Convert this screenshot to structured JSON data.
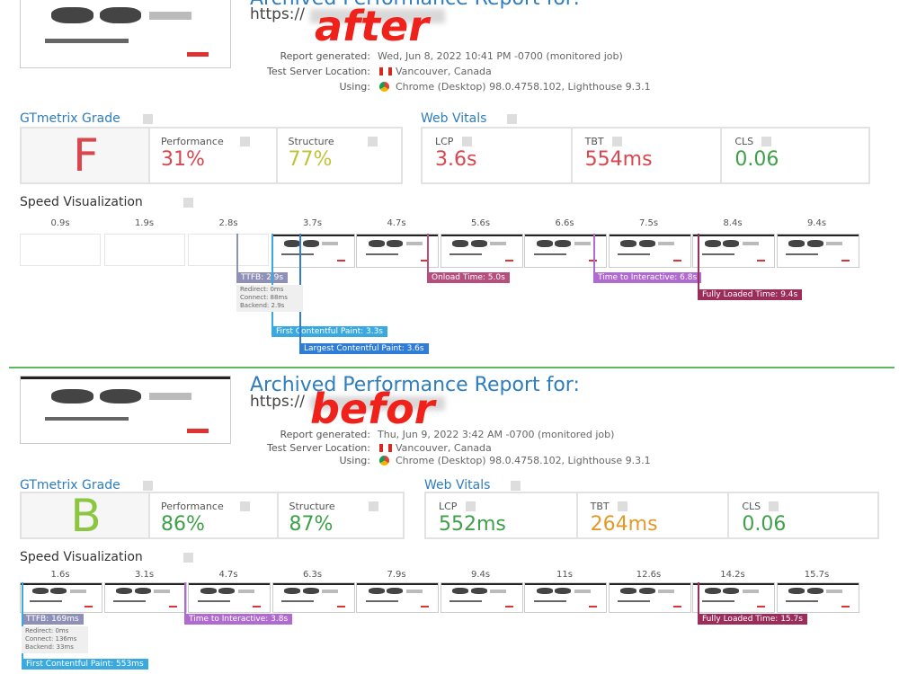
{
  "reports": [
    {
      "stamp": "after",
      "title": "Archived Performance Report for:",
      "url": "https://",
      "meta": [
        {
          "label": "Report generated:",
          "value": "Wed, Jun 8, 2022 10:41 PM -0700 (monitored job)"
        },
        {
          "label": "Test Server Location:",
          "value": "Vancouver, Canada"
        },
        {
          "label": "Using:",
          "value": "Chrome (Desktop) 98.0.4758.102, Lighthouse 9.3.1"
        }
      ],
      "grade_heading": "GTmetrix Grade",
      "grade": {
        "value": "F",
        "color": "#d9464e"
      },
      "metrics": [
        {
          "label": "Performance",
          "value": "31%",
          "color": "#d9464e"
        },
        {
          "label": "Structure",
          "value": "77%",
          "color": "#c2c23a"
        }
      ],
      "vitals_heading": "Web Vitals",
      "vitals": [
        {
          "label": "LCP",
          "value": "3.6s",
          "color": "#d9464e"
        },
        {
          "label": "TBT",
          "value": "554ms",
          "color": "#d9464e"
        },
        {
          "label": "CLS",
          "value": "0.06",
          "color": "#3fa04a"
        }
      ],
      "speed_heading": "Speed Visualization",
      "timeline": [
        "0.9s",
        "1.9s",
        "2.8s",
        "3.7s",
        "4.7s",
        "5.6s",
        "6.6s",
        "7.5s",
        "8.4s",
        "9.4s"
      ],
      "markers": [
        {
          "label": "TTFB: 2.9s",
          "color": "#8f90b8"
        },
        {
          "label": "First Contentful Paint: 3.3s",
          "color": "#3aa9e0"
        },
        {
          "label": "Largest Contentful Paint: 3.6s",
          "color": "#2f7dd6"
        },
        {
          "label": "Onload Time: 5.0s",
          "color": "#b64f7d"
        },
        {
          "label": "Time to Interactive: 6.8s",
          "color": "#b06bd0"
        },
        {
          "label": "Fully Loaded Time: 9.4s",
          "color": "#9b2d5b"
        }
      ],
      "ttfb_details": [
        "Redirect: 0ms",
        "Connect: 88ms",
        "Backend: 2.9s"
      ]
    },
    {
      "stamp": "befor",
      "title": "Archived Performance Report for:",
      "url": "https://",
      "meta": [
        {
          "label": "Report generated:",
          "value": "Thu, Jun 9, 2022 3:42 AM -0700 (monitored job)"
        },
        {
          "label": "Test Server Location:",
          "value": "Vancouver, Canada"
        },
        {
          "label": "Using:",
          "value": "Chrome (Desktop) 98.0.4758.102, Lighthouse 9.3.1"
        }
      ],
      "grade_heading": "GTmetrix Grade",
      "grade": {
        "value": "B",
        "color": "#8cc63e"
      },
      "metrics": [
        {
          "label": "Performance",
          "value": "86%",
          "color": "#3fa04a"
        },
        {
          "label": "Structure",
          "value": "87%",
          "color": "#3fa04a"
        }
      ],
      "vitals_heading": "Web Vitals",
      "vitals": [
        {
          "label": "LCP",
          "value": "552ms",
          "color": "#3fa04a"
        },
        {
          "label": "TBT",
          "value": "264ms",
          "color": "#e09a2a"
        },
        {
          "label": "CLS",
          "value": "0.06",
          "color": "#3fa04a"
        }
      ],
      "speed_heading": "Speed Visualization",
      "timeline": [
        "1.6s",
        "3.1s",
        "4.7s",
        "6.3s",
        "7.9s",
        "9.4s",
        "11s",
        "12.6s",
        "14.2s",
        "15.7s"
      ],
      "markers": [
        {
          "label": "TTFB: 169ms",
          "color": "#8f90b8"
        },
        {
          "label": "First Contentful Paint: 553ms",
          "color": "#3aa9e0"
        },
        {
          "label": "Time to Interactive: 3.8s",
          "color": "#b06bd0"
        },
        {
          "label": "Fully Loaded Time: 15.7s",
          "color": "#9b2d5b"
        }
      ],
      "ttfb_details": [
        "Redirect: 0ms",
        "Connect: 136ms",
        "Backend: 33ms"
      ]
    }
  ]
}
